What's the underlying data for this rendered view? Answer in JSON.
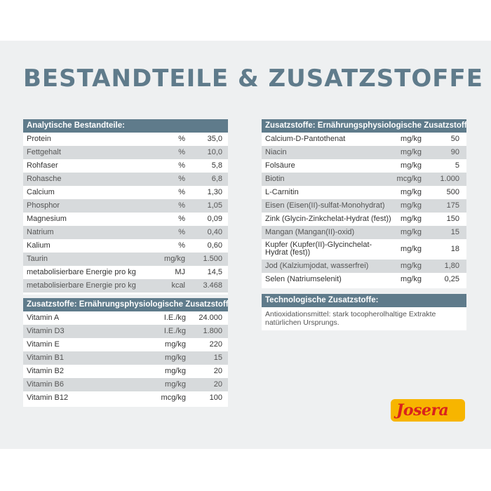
{
  "title": "BESTANDTEILE & ZUSATZSTOFFE",
  "analytical": {
    "header": "Analytische Bestandteile:",
    "rows": [
      {
        "name": "Protein",
        "unit": "%",
        "value": "35,0"
      },
      {
        "name": "Fettgehalt",
        "unit": "%",
        "value": "10,0"
      },
      {
        "name": "Rohfaser",
        "unit": "%",
        "value": "5,8"
      },
      {
        "name": "Rohasche",
        "unit": "%",
        "value": "6,8"
      },
      {
        "name": "Calcium",
        "unit": "%",
        "value": "1,30"
      },
      {
        "name": "Phosphor",
        "unit": "%",
        "value": "1,05"
      },
      {
        "name": "Magnesium",
        "unit": "%",
        "value": "0,09"
      },
      {
        "name": "Natrium",
        "unit": "%",
        "value": "0,40"
      },
      {
        "name": "Kalium",
        "unit": "%",
        "value": "0,60"
      },
      {
        "name": "Taurin",
        "unit": "mg/kg",
        "value": "1.500"
      },
      {
        "name": "metabolisierbare Energie pro kg",
        "unit": "MJ",
        "value": "14,5"
      },
      {
        "name": "metabolisierbare Energie pro kg",
        "unit": "kcal",
        "value": "3.468"
      }
    ]
  },
  "vitamins": {
    "header": "Zusatzstoffe: Ernährungsphysiologische Zusatzstoffe je kg:",
    "rows": [
      {
        "name": "Vitamin A",
        "unit": "I.E./kg",
        "value": "24.000"
      },
      {
        "name": "Vitamin D3",
        "unit": "I.E./kg",
        "value": "1.800"
      },
      {
        "name": "Vitamin E",
        "unit": "mg/kg",
        "value": "220"
      },
      {
        "name": "Vitamin B1",
        "unit": "mg/kg",
        "value": "15"
      },
      {
        "name": "Vitamin B2",
        "unit": "mg/kg",
        "value": "20"
      },
      {
        "name": "Vitamin B6",
        "unit": "mg/kg",
        "value": "20"
      },
      {
        "name": "Vitamin B12",
        "unit": "mcg/kg",
        "value": "100"
      }
    ]
  },
  "minerals": {
    "header": "Zusatzstoffe: Ernährungsphysiologische Zusatzstoffe je kg:",
    "rows": [
      {
        "name": "Calcium-D-Pantothenat",
        "unit": "mg/kg",
        "value": "50"
      },
      {
        "name": "Niacin",
        "unit": "mg/kg",
        "value": "90"
      },
      {
        "name": "Folsäure",
        "unit": "mg/kg",
        "value": "5"
      },
      {
        "name": "Biotin",
        "unit": "mcg/kg",
        "value": "1.000"
      },
      {
        "name": "L-Carnitin",
        "unit": "mg/kg",
        "value": "500"
      },
      {
        "name": "Eisen (Eisen(II)-sulfat-Monohydrat)",
        "unit": "mg/kg",
        "value": "175"
      },
      {
        "name": "Zink (Glycin-Zinkchelat-Hydrat (fest))",
        "unit": "mg/kg",
        "value": "150"
      },
      {
        "name": "Mangan (Mangan(II)-oxid)",
        "unit": "mg/kg",
        "value": "15"
      },
      {
        "name": "Kupfer (Kupfer(II)-Glycinchelat-Hydrat (fest))",
        "unit": "mg/kg",
        "value": "18",
        "tall": true
      },
      {
        "name": "Jod (Kalziumjodat, wasserfrei)",
        "unit": "mg/kg",
        "value": "1,80"
      },
      {
        "name": "Selen (Natriumselenit)",
        "unit": "mg/kg",
        "value": "0,25"
      }
    ]
  },
  "technological": {
    "header": "Technologische Zusatzstoffe:",
    "note": "Antioxidationsmittel: stark tocopherolhaltige Extrakte natürlichen Ursprungs."
  },
  "logo": {
    "text": "Josera",
    "bg_color": "#f7b500",
    "text_color": "#d9221c"
  },
  "colors": {
    "header": "#5f7b8b",
    "alt_row": "#d7dadc",
    "panel": "#eef0f1"
  }
}
